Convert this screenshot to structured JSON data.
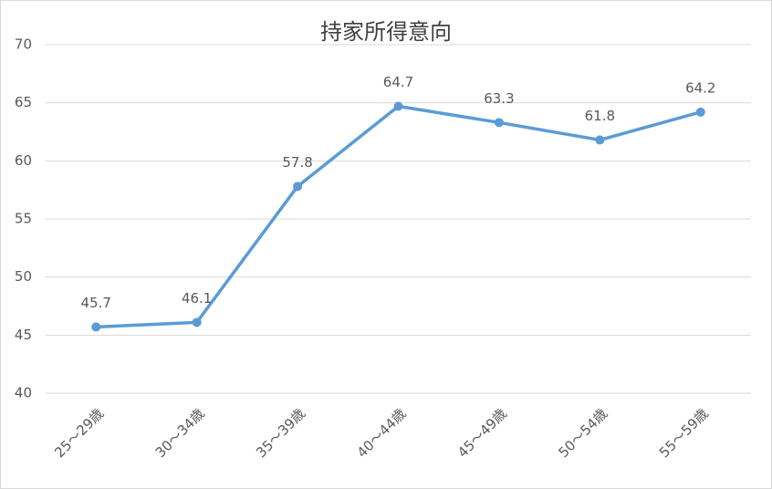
{
  "chart_data": {
    "type": "line",
    "title": "持家所得意向",
    "categories": [
      "25～29歳",
      "30～34歳",
      "35～39歳",
      "40～44歳",
      "45～49歳",
      "50～54歳",
      "55～59歳"
    ],
    "series": [
      {
        "name": "持家所得意向",
        "color": "#5b9bd5",
        "values": [
          45.7,
          46.1,
          57.8,
          64.7,
          63.3,
          61.8,
          64.2
        ]
      }
    ],
    "ylim": [
      40,
      70
    ],
    "yticks": [
      40,
      45,
      50,
      55,
      60,
      65,
      70
    ],
    "grid": true
  }
}
